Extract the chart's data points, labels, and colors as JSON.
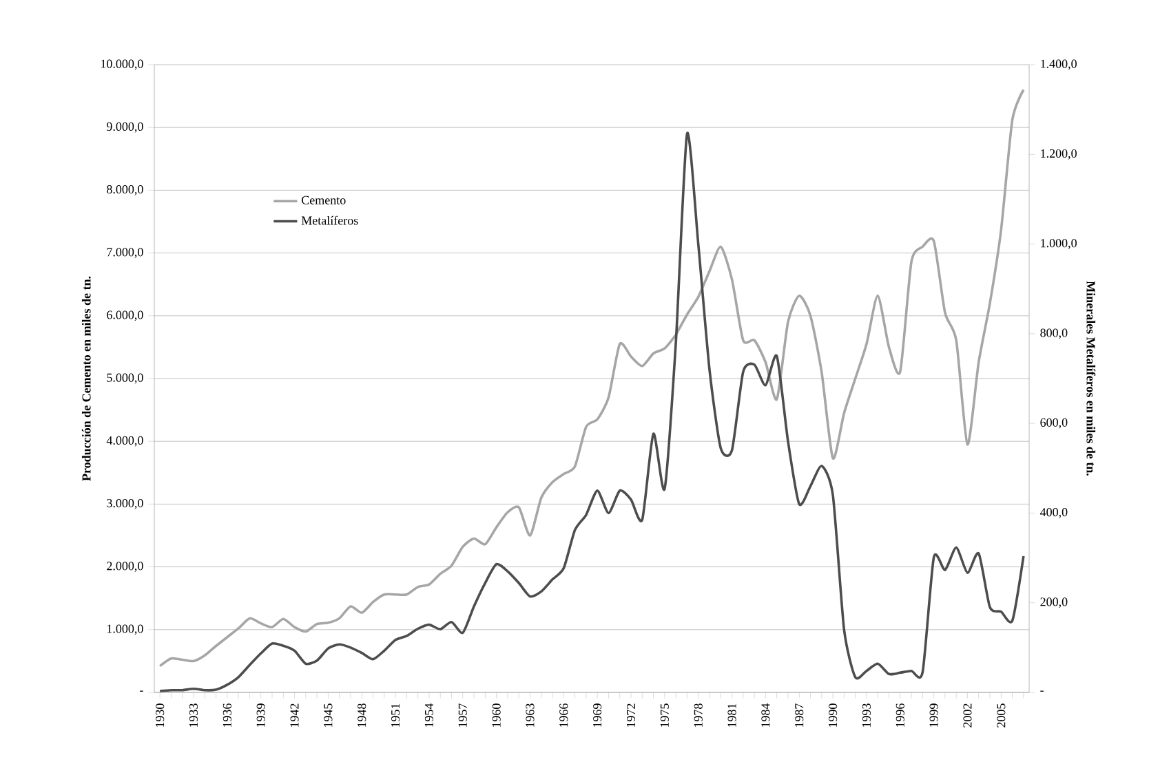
{
  "chart_data": {
    "type": "line",
    "categories": [
      "1930",
      null,
      null,
      "1933",
      null,
      null,
      "1936",
      null,
      null,
      "1939",
      null,
      null,
      "1942",
      null,
      null,
      "1945",
      null,
      null,
      "1948",
      null,
      null,
      "1951",
      null,
      null,
      "1954",
      null,
      null,
      "1957",
      null,
      null,
      "1960",
      null,
      null,
      "1963",
      null,
      null,
      "1966",
      null,
      null,
      "1969",
      null,
      null,
      "1972",
      null,
      null,
      "1975",
      null,
      null,
      "1978",
      null,
      null,
      "1981",
      null,
      null,
      "1984",
      null,
      null,
      "1987",
      null,
      null,
      "1990",
      null,
      null,
      "1993",
      null,
      null,
      "1996",
      null,
      null,
      "1999",
      null,
      null,
      "2002",
      null,
      null,
      "2005",
      null,
      null
    ],
    "series": [
      {
        "name": "Cemento",
        "color": "#a6a6a6",
        "values": [
          420,
          540,
          520,
          500,
          590,
          740,
          880,
          1020,
          1180,
          1100,
          1040,
          1170,
          1040,
          970,
          1090,
          1110,
          1180,
          1370,
          1270,
          1440,
          1560,
          1560,
          1560,
          1680,
          1720,
          1890,
          2020,
          2320,
          2450,
          2360,
          2630,
          2870,
          2950,
          2500,
          3100,
          3350,
          3480,
          3600,
          4230,
          4350,
          4700,
          5550,
          5350,
          5200,
          5400,
          5480,
          5700,
          6020,
          6300,
          6710,
          7100,
          6580,
          5610,
          5610,
          5260,
          4670,
          5900,
          6320,
          6000,
          5100,
          3730,
          4450,
          5000,
          5550,
          6320,
          5500,
          5110,
          6860,
          7100,
          7190,
          6050,
          5610,
          3950,
          5260,
          6200,
          7370,
          9120,
          9600
        ]
      },
      {
        "name": "Metalíferos",
        "color": "#4d4d4d",
        "axis": "y2",
        "values": [
          3,
          5,
          5,
          8,
          5,
          6,
          17,
          34,
          61,
          87,
          109,
          104,
          93,
          64,
          71,
          98,
          107,
          100,
          88,
          74,
          93,
          117,
          126,
          142,
          151,
          141,
          157,
          133,
          192,
          244,
          286,
          270,
          244,
          214,
          225,
          252,
          277,
          362,
          396,
          450,
          400,
          450,
          430,
          385,
          577,
          454,
          780,
          1246,
          1000,
          720,
          545,
          540,
          715,
          731,
          685,
          750,
          560,
          420,
          460,
          505,
          440,
          140,
          34,
          48,
          64,
          41,
          44,
          48,
          45,
          301,
          273,
          323,
          267,
          310,
          190,
          180,
          160,
          304
        ]
      }
    ],
    "ylabel": "Producción de Cemento en miles de tn.",
    "y2label": "Minerales Metalíferos en miles de tn.",
    "ylim": [
      0,
      10000
    ],
    "yticks": [
      {
        "value": 0,
        "label": "-"
      },
      {
        "value": 1000,
        "label": "1.000,0"
      },
      {
        "value": 2000,
        "label": "2.000,0"
      },
      {
        "value": 3000,
        "label": "3.000,0"
      },
      {
        "value": 4000,
        "label": "4.000,0"
      },
      {
        "value": 5000,
        "label": "5.000,0"
      },
      {
        "value": 6000,
        "label": "6.000,0"
      },
      {
        "value": 7000,
        "label": "7.000,0"
      },
      {
        "value": 8000,
        "label": "8.000,0"
      },
      {
        "value": 9000,
        "label": "9.000,0"
      },
      {
        "value": 10000,
        "label": "10.000,0"
      }
    ],
    "y2lim": [
      0,
      1400
    ],
    "y2ticks": [
      {
        "value": 0,
        "label": "-"
      },
      {
        "value": 200,
        "label": "200,0"
      },
      {
        "value": 400,
        "label": "400,0"
      },
      {
        "value": 600,
        "label": "600,0"
      },
      {
        "value": 800,
        "label": "800,0"
      },
      {
        "value": 1000,
        "label": "1.000,0"
      },
      {
        "value": 1200,
        "label": "1.200,0"
      },
      {
        "value": 1400,
        "label": "1.400,0"
      }
    ],
    "grid": "y",
    "legend": "top left"
  }
}
